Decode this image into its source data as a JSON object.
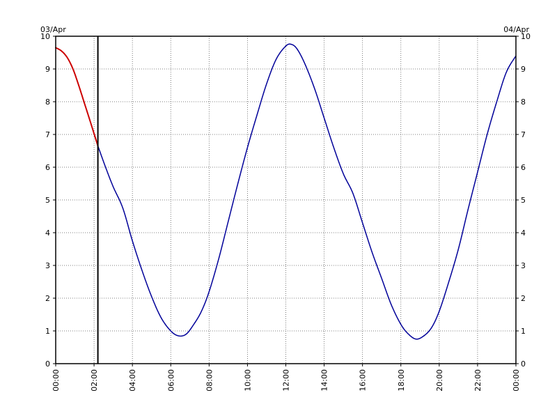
{
  "chart_data": {
    "type": "line",
    "title": "",
    "date_left": "03/Apr",
    "date_right": "04/Apr",
    "xlabel": "",
    "ylabel": "",
    "x_ticks": [
      "00:00",
      "02:00",
      "04:00",
      "06:00",
      "08:00",
      "10:00",
      "12:00",
      "14:00",
      "16:00",
      "18:00",
      "20:00",
      "22:00",
      "00:00"
    ],
    "y_ticks": [
      "0",
      "1",
      "2",
      "3",
      "4",
      "5",
      "6",
      "7",
      "8",
      "9",
      "10"
    ],
    "xlim": [
      0,
      24
    ],
    "ylim": [
      0,
      10
    ],
    "grid": true,
    "current_time": 2.2,
    "series": [
      {
        "color": "#cc0000",
        "style": "dotted",
        "points": [
          [
            0.0,
            9.65
          ],
          [
            0.3,
            9.55
          ],
          [
            0.6,
            9.35
          ],
          [
            0.9,
            9.0
          ],
          [
            1.2,
            8.5
          ],
          [
            1.5,
            7.95
          ],
          [
            1.8,
            7.4
          ],
          [
            2.2,
            6.65
          ]
        ]
      },
      {
        "color": "#000099",
        "style": "dotted",
        "points": [
          [
            2.2,
            6.65
          ],
          [
            2.6,
            6.0
          ],
          [
            3.0,
            5.4
          ],
          [
            3.5,
            4.75
          ],
          [
            4.0,
            3.75
          ],
          [
            4.5,
            2.85
          ],
          [
            5.0,
            2.05
          ],
          [
            5.5,
            1.4
          ],
          [
            6.0,
            1.0
          ],
          [
            6.4,
            0.85
          ],
          [
            6.8,
            0.9
          ],
          [
            7.2,
            1.2
          ],
          [
            7.6,
            1.6
          ],
          [
            8.0,
            2.2
          ],
          [
            8.5,
            3.2
          ],
          [
            9.0,
            4.35
          ],
          [
            9.5,
            5.5
          ],
          [
            10.0,
            6.6
          ],
          [
            10.5,
            7.6
          ],
          [
            11.0,
            8.55
          ],
          [
            11.5,
            9.3
          ],
          [
            12.0,
            9.7
          ],
          [
            12.3,
            9.75
          ],
          [
            12.6,
            9.6
          ],
          [
            13.0,
            9.15
          ],
          [
            13.5,
            8.4
          ],
          [
            14.0,
            7.5
          ],
          [
            14.5,
            6.6
          ],
          [
            15.0,
            5.8
          ],
          [
            15.5,
            5.2
          ],
          [
            16.0,
            4.3
          ],
          [
            16.5,
            3.4
          ],
          [
            17.0,
            2.6
          ],
          [
            17.5,
            1.8
          ],
          [
            18.0,
            1.2
          ],
          [
            18.4,
            0.9
          ],
          [
            18.8,
            0.75
          ],
          [
            19.2,
            0.85
          ],
          [
            19.6,
            1.1
          ],
          [
            20.0,
            1.6
          ],
          [
            20.5,
            2.5
          ],
          [
            21.0,
            3.5
          ],
          [
            21.5,
            4.7
          ],
          [
            22.0,
            5.85
          ],
          [
            22.5,
            7.0
          ],
          [
            23.0,
            8.0
          ],
          [
            23.5,
            8.9
          ],
          [
            24.0,
            9.4
          ]
        ]
      }
    ]
  }
}
